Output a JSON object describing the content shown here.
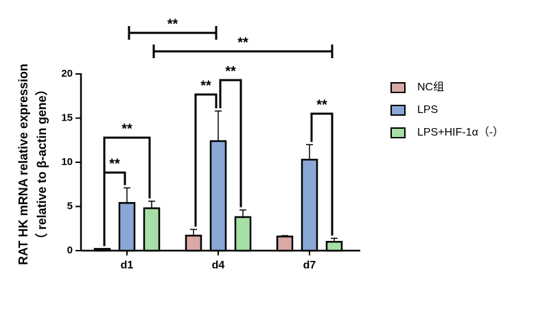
{
  "chart_data": {
    "type": "bar",
    "y_label": [
      "RAT HK mRNA relative expression",
      "（ relative to β-actin gene）"
    ],
    "categories": [
      "d1",
      "d4",
      "d7"
    ],
    "series": [
      {
        "name": "NC组",
        "color": "#d8a9a6",
        "values": [
          0.2,
          1.7,
          1.6
        ],
        "errors": [
          0,
          0.7,
          0.1
        ]
      },
      {
        "name": "LPS",
        "color": "#8aa8d6",
        "values": [
          5.4,
          12.4,
          10.3
        ],
        "errors": [
          1.7,
          3.4,
          1.7
        ]
      },
      {
        "name": "LPS+HIF-1α（-）",
        "color": "#a6e0a6",
        "values": [
          4.8,
          3.8,
          1.0
        ],
        "errors": [
          0.8,
          0.8,
          0.4
        ]
      }
    ],
    "ylim": [
      0,
      20
    ],
    "yticks": [
      0,
      5,
      10,
      15,
      20
    ],
    "significance": [
      {
        "label": "**",
        "from": [
          0,
          0
        ],
        "to": [
          0,
          1
        ]
      },
      {
        "label": "**",
        "from": [
          0,
          0
        ],
        "to": [
          0,
          2
        ]
      },
      {
        "label": "**",
        "from": [
          1,
          0
        ],
        "to": [
          1,
          1
        ]
      },
      {
        "label": "**",
        "from": [
          1,
          1
        ],
        "to": [
          1,
          2
        ]
      },
      {
        "label": "**",
        "from": [
          2,
          1
        ],
        "to": [
          2,
          2
        ]
      },
      {
        "label": "**",
        "from": [
          0,
          1
        ],
        "to": [
          1,
          1
        ]
      },
      {
        "label": "**",
        "from": [
          0,
          2
        ],
        "to": [
          2,
          2
        ]
      }
    ]
  }
}
